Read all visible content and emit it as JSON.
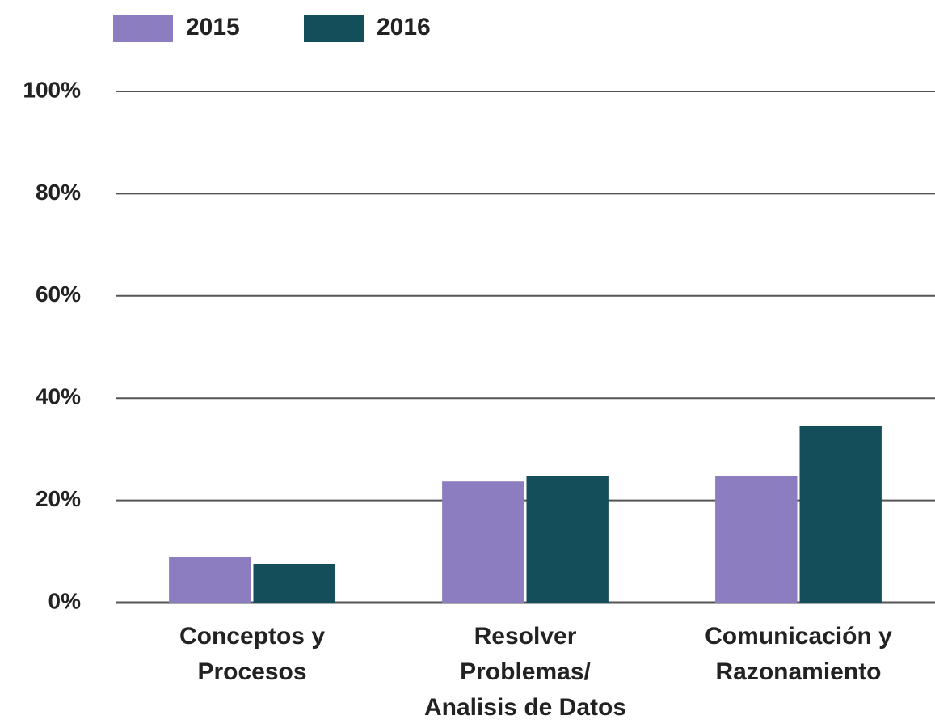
{
  "chart_data": {
    "type": "bar",
    "categories": [
      "Conceptos y\nProcesos",
      "Resolver\nProblemas/\nAnalisis de Datos",
      "Comunicación y\nRazonamiento"
    ],
    "series": [
      {
        "name": "2015",
        "color": "#8c7dc0",
        "values": [
          9,
          23.7,
          24.7
        ]
      },
      {
        "name": "2016",
        "color": "#154e5b",
        "values": [
          7.6,
          24.7,
          34.5
        ]
      }
    ],
    "ylim": [
      0,
      100
    ],
    "yticks": [
      {
        "value": 0,
        "label": "0%"
      },
      {
        "value": 20,
        "label": "20%"
      },
      {
        "value": 40,
        "label": "40%"
      },
      {
        "value": 60,
        "label": "60%"
      },
      {
        "value": 80,
        "label": "80%"
      },
      {
        "value": 100,
        "label": "100%"
      }
    ],
    "grid": true
  }
}
